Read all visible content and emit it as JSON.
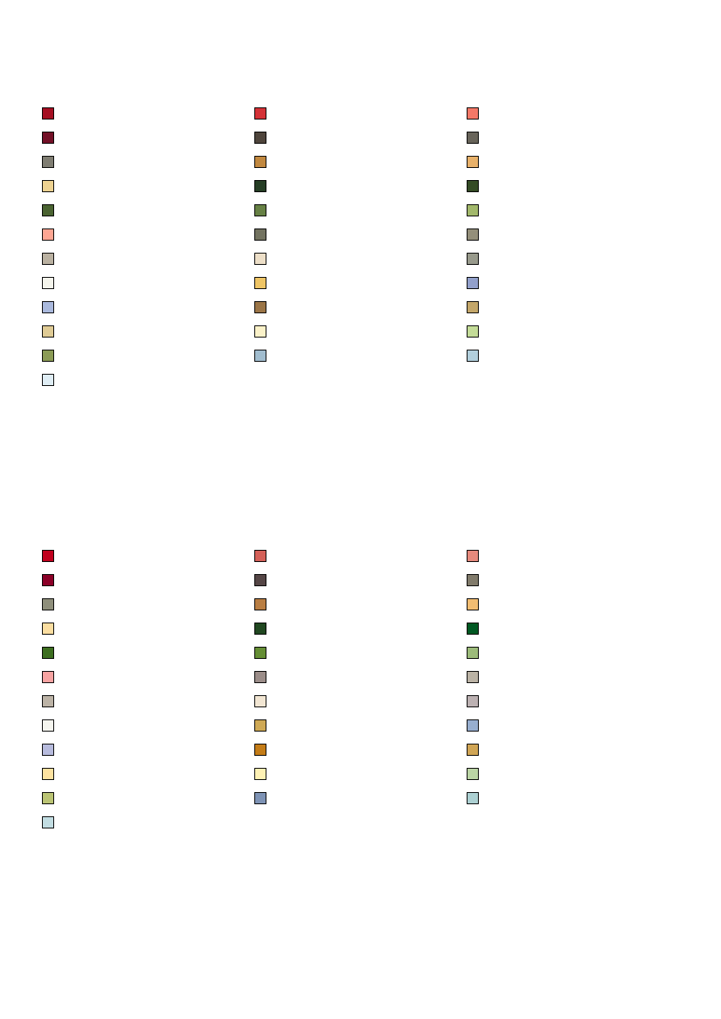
{
  "palettes": [
    {
      "swatches": [
        [
          "#a50f22",
          "#d43237",
          "#f37867"
        ],
        [
          "#731027",
          "#4f453c",
          "#68645a"
        ],
        [
          "#7f7d72",
          "#c1883f",
          "#e8b16a"
        ],
        [
          "#edd291",
          "#253d24",
          "#344b25"
        ],
        [
          "#4a6331",
          "#678145",
          "#a2b86b"
        ],
        [
          "#fea693",
          "#737360",
          "#948f7a"
        ],
        [
          "#bab1a1",
          "#eddfc8",
          "#989a8c"
        ],
        [
          "#f4f4ec",
          "#efc565",
          "#92a0cb"
        ],
        [
          "#aab9dd",
          "#9b7547",
          "#c4a76a"
        ],
        [
          "#dfcb95",
          "#fbf2c9",
          "#c4dc98"
        ],
        [
          "#8b9b55",
          "#a1bdcf",
          "#b2cfdc"
        ],
        [
          "#dfedf4"
        ]
      ]
    },
    {
      "swatches": [
        [
          "#c0001d",
          "#d46058",
          "#e68a7d"
        ],
        [
          "#8b0027",
          "#554646",
          "#817b6b"
        ],
        [
          "#8f8f7b",
          "#b97e43",
          "#f2bd72"
        ],
        [
          "#fbdea1",
          "#214821",
          "#005822"
        ],
        [
          "#3d6e20",
          "#658e35",
          "#9cbb7a"
        ],
        [
          "#f7a3a2",
          "#9b8d89",
          "#bbb3a5"
        ],
        [
          "#bcb3a6",
          "#f2e6d3",
          "#bcb1b2"
        ],
        [
          "#f5f5ef",
          "#cfa955",
          "#97aecf"
        ],
        [
          "#b7bbdd",
          "#c47c17",
          "#d0a555"
        ],
        [
          "#fde2a0",
          "#fef1b4",
          "#bbd5a5"
        ],
        [
          "#bbc474",
          "#7e93b5",
          "#acd0d2"
        ],
        [
          "#c2dde2"
        ]
      ]
    }
  ]
}
